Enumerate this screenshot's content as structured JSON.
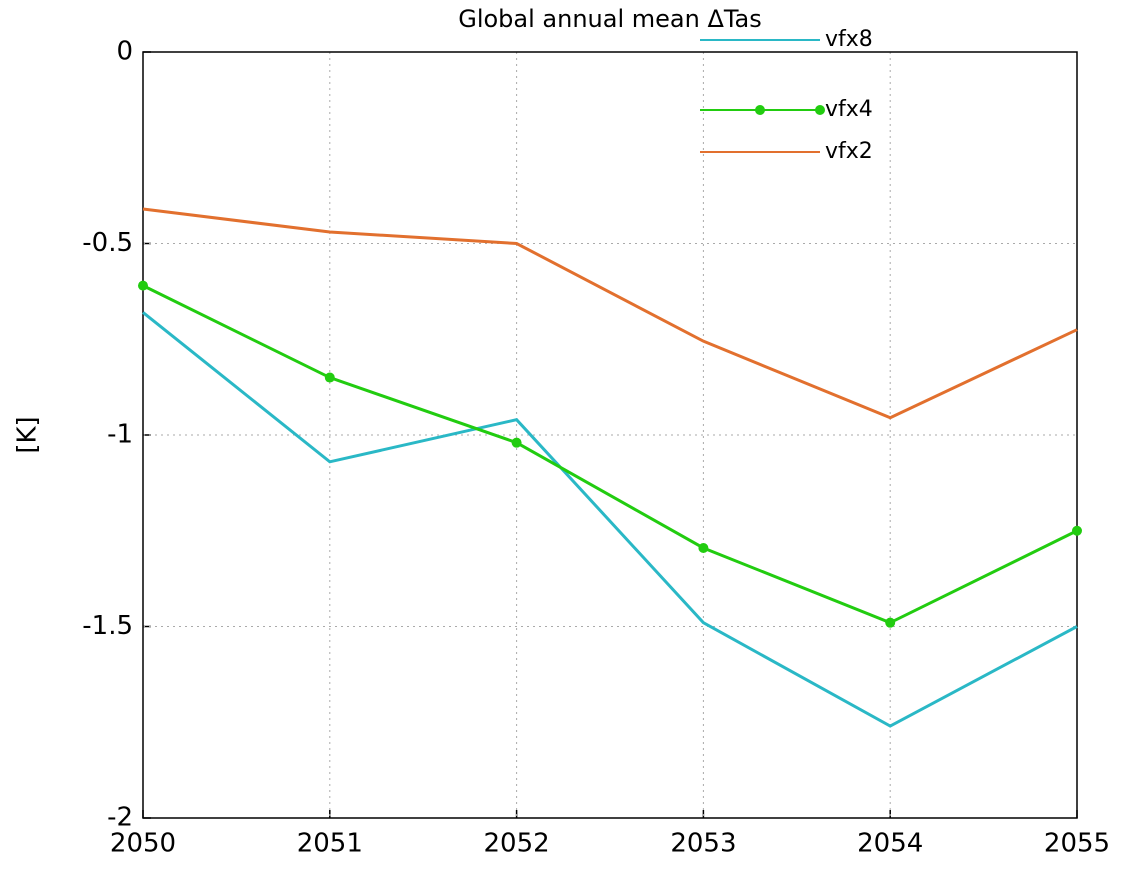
{
  "chart_data": {
    "type": "line",
    "title": "Global annual mean ΔTas",
    "ylabel": "[K]",
    "x": [
      2050,
      2051,
      2052,
      2053,
      2054,
      2055
    ],
    "xlim": [
      2050,
      2055
    ],
    "xticks": [
      2050,
      2051,
      2052,
      2053,
      2054,
      2055
    ],
    "ylim": [
      -2,
      0
    ],
    "yticks": [
      0,
      -0.5,
      -1,
      -1.5,
      -2
    ],
    "grid": true,
    "legend": "upper right",
    "series": [
      {
        "name": "vfx8",
        "color": "#2ab8c6",
        "values": [
          -0.68,
          -1.07,
          -0.96,
          -1.49,
          -1.76,
          -1.5
        ]
      },
      {
        "name": "vfx4",
        "color": "#22cc10",
        "marker": true,
        "values": [
          -0.61,
          -0.85,
          -1.02,
          -1.295,
          -1.49,
          -1.25
        ]
      },
      {
        "name": "vfx2",
        "color": "#e2702e",
        "values": [
          -0.41,
          -0.47,
          -0.5,
          -0.755,
          -0.955,
          -0.725
        ]
      }
    ]
  }
}
